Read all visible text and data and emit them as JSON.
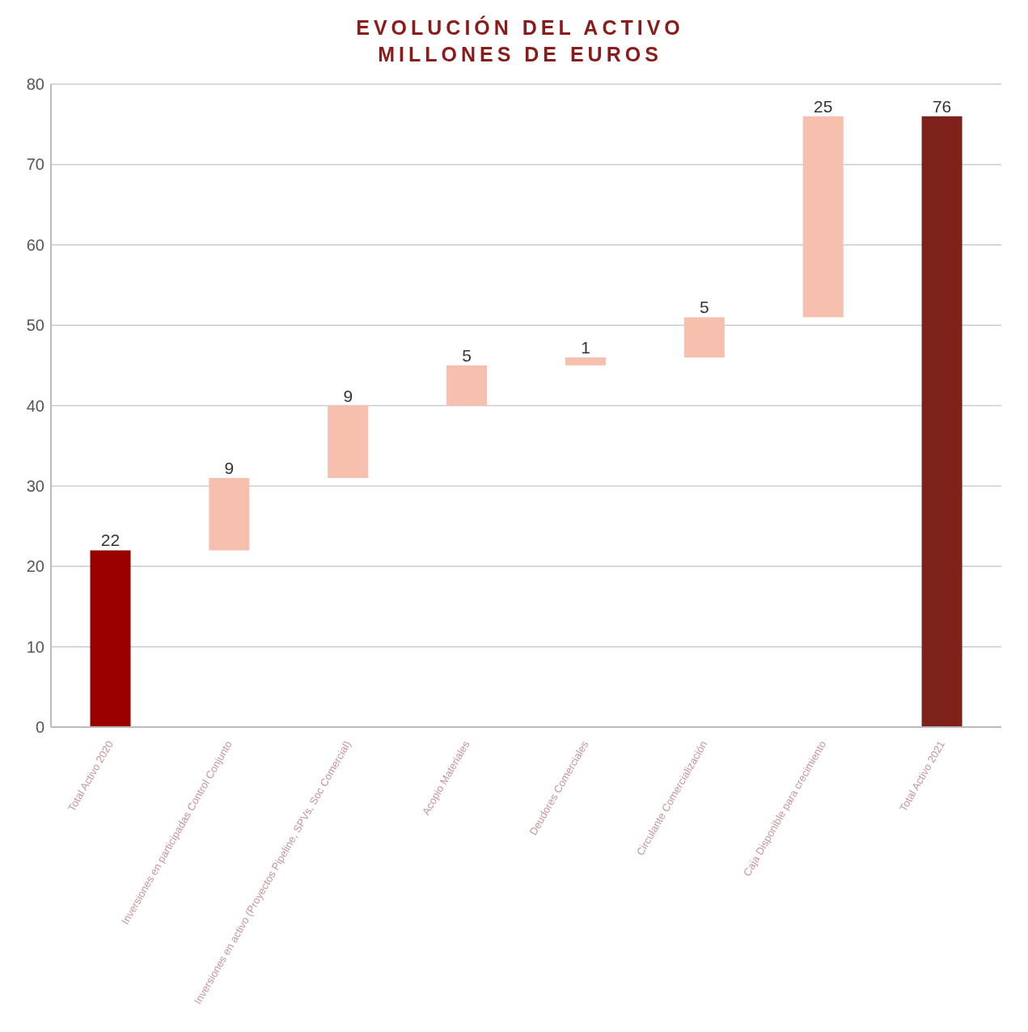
{
  "chart_data": {
    "type": "bar",
    "title": "EVOLUCIÓN DEL ACTIVO",
    "subtitle": "MILLONES DE EUROS",
    "categories": [
      "Total Activo 2020",
      "Inversiones en participadas Control Conjunto",
      "Inversiones en activo (Proyectos Pipeline, SPVs, Soc Comercial)",
      "Acopio Materiales",
      "Deudores Comerciales",
      "Circulante Comercialización",
      "Caja Disponible para crecimiento",
      "Total Activo 2021"
    ],
    "values": [
      22,
      9,
      9,
      5,
      1,
      5,
      25,
      76
    ],
    "base": [
      0,
      22,
      31,
      40,
      45,
      46,
      51,
      0
    ],
    "colors": [
      "#990000",
      "#f7bfae",
      "#f7bfae",
      "#f7bfae",
      "#f7bfae",
      "#f7bfae",
      "#f7bfae",
      "#7f211b"
    ],
    "ylim": [
      0,
      80
    ],
    "yticks": [
      0,
      10,
      20,
      30,
      40,
      50,
      60,
      70,
      80
    ],
    "grid": "y",
    "data_labels": true
  }
}
